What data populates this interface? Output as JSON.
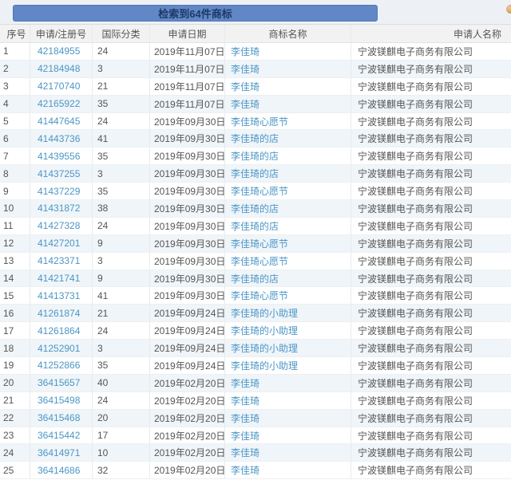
{
  "banner": {
    "label": "检索到64件商标"
  },
  "columns": {
    "index": "序号",
    "reg_no": "申请/注册号",
    "intl_class": "国际分类",
    "app_date": "申请日期",
    "mark_name": "商标名称",
    "applicant": "申请人名称"
  },
  "rows": [
    {
      "no": "1",
      "reg": "42184955",
      "cls": "24",
      "date": "2019年11月07日",
      "mark": "李佳琦",
      "applicant": "宁波镁麒电子商务有限公司"
    },
    {
      "no": "2",
      "reg": "42184948",
      "cls": "3",
      "date": "2019年11月07日",
      "mark": "李佳琦",
      "applicant": "宁波镁麒电子商务有限公司"
    },
    {
      "no": "3",
      "reg": "42170740",
      "cls": "21",
      "date": "2019年11月07日",
      "mark": "李佳琦",
      "applicant": "宁波镁麒电子商务有限公司"
    },
    {
      "no": "4",
      "reg": "42165922",
      "cls": "35",
      "date": "2019年11月07日",
      "mark": "李佳琦",
      "applicant": "宁波镁麒电子商务有限公司"
    },
    {
      "no": "5",
      "reg": "41447645",
      "cls": "24",
      "date": "2019年09月30日",
      "mark": "李佳琦心愿节",
      "applicant": "宁波镁麒电子商务有限公司"
    },
    {
      "no": "6",
      "reg": "41443736",
      "cls": "41",
      "date": "2019年09月30日",
      "mark": "李佳琦的店",
      "applicant": "宁波镁麒电子商务有限公司"
    },
    {
      "no": "7",
      "reg": "41439556",
      "cls": "35",
      "date": "2019年09月30日",
      "mark": "李佳琦的店",
      "applicant": "宁波镁麒电子商务有限公司"
    },
    {
      "no": "8",
      "reg": "41437255",
      "cls": "3",
      "date": "2019年09月30日",
      "mark": "李佳琦的店",
      "applicant": "宁波镁麒电子商务有限公司"
    },
    {
      "no": "9",
      "reg": "41437229",
      "cls": "35",
      "date": "2019年09月30日",
      "mark": "李佳琦心愿节",
      "applicant": "宁波镁麒电子商务有限公司"
    },
    {
      "no": "10",
      "reg": "41431872",
      "cls": "38",
      "date": "2019年09月30日",
      "mark": "李佳琦的店",
      "applicant": "宁波镁麒电子商务有限公司"
    },
    {
      "no": "11",
      "reg": "41427328",
      "cls": "24",
      "date": "2019年09月30日",
      "mark": "李佳琦的店",
      "applicant": "宁波镁麒电子商务有限公司"
    },
    {
      "no": "12",
      "reg": "41427201",
      "cls": "9",
      "date": "2019年09月30日",
      "mark": "李佳琦心愿节",
      "applicant": "宁波镁麒电子商务有限公司"
    },
    {
      "no": "13",
      "reg": "41423371",
      "cls": "3",
      "date": "2019年09月30日",
      "mark": "李佳琦心愿节",
      "applicant": "宁波镁麒电子商务有限公司"
    },
    {
      "no": "14",
      "reg": "41421741",
      "cls": "9",
      "date": "2019年09月30日",
      "mark": "李佳琦的店",
      "applicant": "宁波镁麒电子商务有限公司"
    },
    {
      "no": "15",
      "reg": "41413731",
      "cls": "41",
      "date": "2019年09月30日",
      "mark": "李佳琦心愿节",
      "applicant": "宁波镁麒电子商务有限公司"
    },
    {
      "no": "16",
      "reg": "41261874",
      "cls": "21",
      "date": "2019年09月24日",
      "mark": "李佳琦的小助理",
      "applicant": "宁波镁麒电子商务有限公司"
    },
    {
      "no": "17",
      "reg": "41261864",
      "cls": "24",
      "date": "2019年09月24日",
      "mark": "李佳琦的小助理",
      "applicant": "宁波镁麒电子商务有限公司"
    },
    {
      "no": "18",
      "reg": "41252901",
      "cls": "3",
      "date": "2019年09月24日",
      "mark": "李佳琦的小助理",
      "applicant": "宁波镁麒电子商务有限公司"
    },
    {
      "no": "19",
      "reg": "41252866",
      "cls": "35",
      "date": "2019年09月24日",
      "mark": "李佳琦的小助理",
      "applicant": "宁波镁麒电子商务有限公司"
    },
    {
      "no": "20",
      "reg": "36415657",
      "cls": "40",
      "date": "2019年02月20日",
      "mark": "李佳琦",
      "applicant": "宁波镁麒电子商务有限公司"
    },
    {
      "no": "21",
      "reg": "36415498",
      "cls": "24",
      "date": "2019年02月20日",
      "mark": "李佳琦",
      "applicant": "宁波镁麒电子商务有限公司"
    },
    {
      "no": "22",
      "reg": "36415468",
      "cls": "20",
      "date": "2019年02月20日",
      "mark": "李佳琦",
      "applicant": "宁波镁麒电子商务有限公司"
    },
    {
      "no": "23",
      "reg": "36415442",
      "cls": "17",
      "date": "2019年02月20日",
      "mark": "李佳琦",
      "applicant": "宁波镁麒电子商务有限公司"
    },
    {
      "no": "24",
      "reg": "36414971",
      "cls": "10",
      "date": "2019年02月20日",
      "mark": "李佳琦",
      "applicant": "宁波镁麒电子商务有限公司"
    },
    {
      "no": "25",
      "reg": "36414686",
      "cls": "32",
      "date": "2019年02月20日",
      "mark": "李佳琦",
      "applicant": "宁波镁麒电子商务有限公司"
    }
  ],
  "colors": {
    "banner_bg": "#6187c7",
    "banner_text": "#1c3a66",
    "page_top_bg": "#edf1f6",
    "header_bg": "#f2f2f2",
    "row_alt": "#f0f5f9",
    "link": "#4c96c6",
    "dot_color": "#cd7c35"
  }
}
